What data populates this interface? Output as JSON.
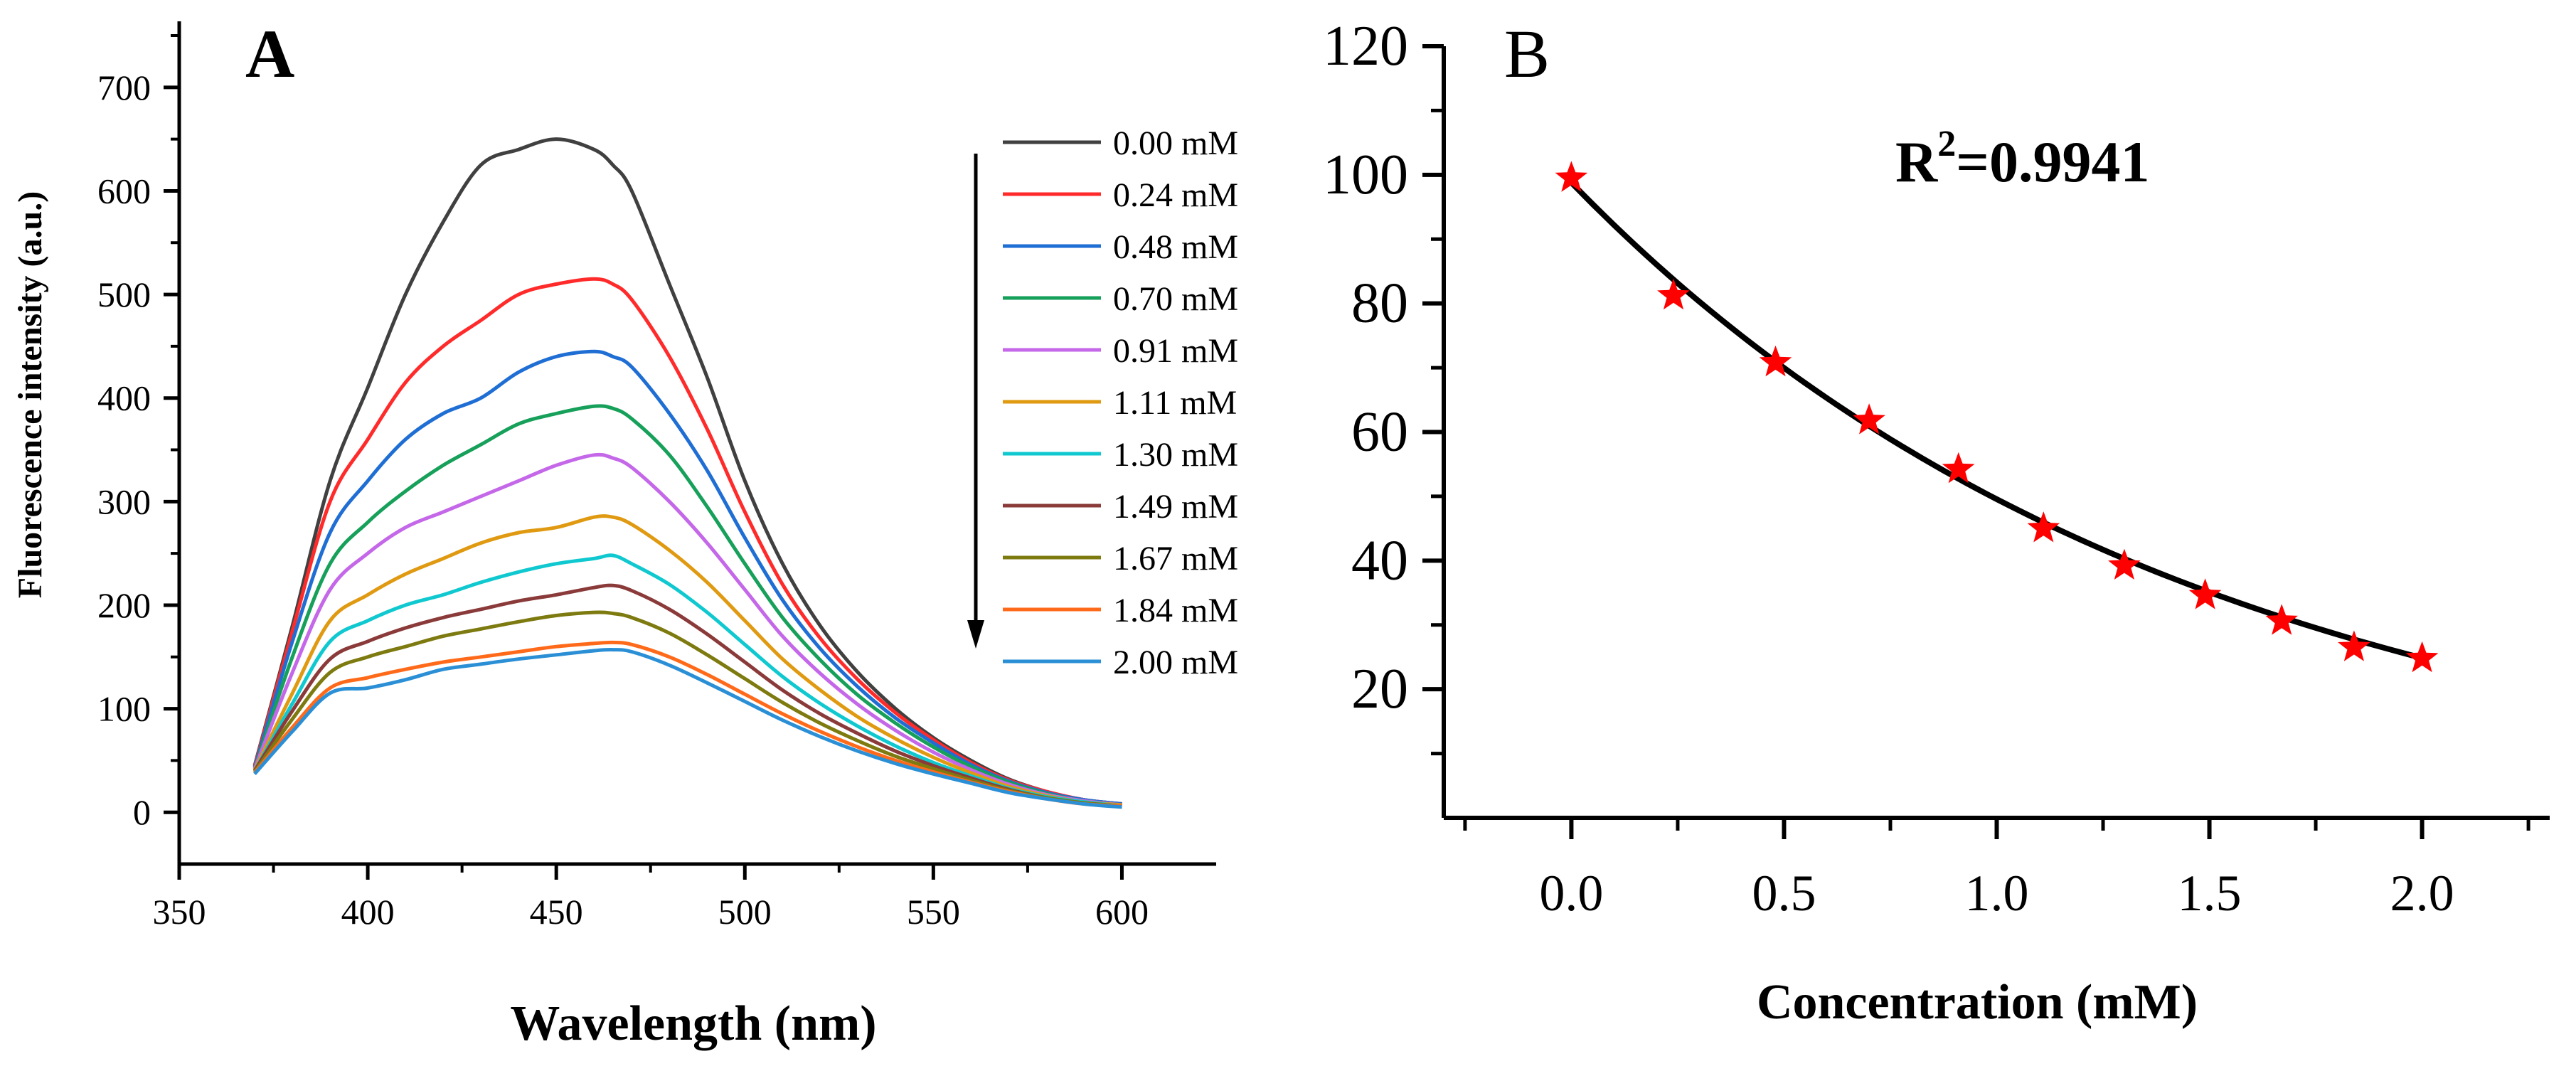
{
  "chart_data": [
    {
      "panel_label": "A",
      "type": "line",
      "title": "",
      "xlabel": "Wavelength (nm)",
      "ylabel": "Fluorescence intensity (a.u.)",
      "xlim": [
        350,
        625
      ],
      "ylim": [
        -50,
        750
      ],
      "xticks": [
        "350",
        "400",
        "450",
        "500",
        "550",
        "600"
      ],
      "yticks": [
        "0",
        "100",
        "200",
        "300",
        "400",
        "500",
        "600",
        "700"
      ],
      "x": [
        370,
        380,
        390,
        400,
        410,
        420,
        430,
        440,
        450,
        460,
        465,
        470,
        480,
        490,
        500,
        510,
        520,
        530,
        540,
        550,
        560,
        570,
        580,
        590,
        600
      ],
      "series": [
        {
          "name": "0.00 mM",
          "color": "#404040",
          "values": [
            45,
            180,
            320,
            410,
            500,
            570,
            625,
            640,
            650,
            640,
            625,
            600,
            510,
            420,
            320,
            240,
            180,
            135,
            100,
            72,
            50,
            32,
            20,
            12,
            8
          ]
        },
        {
          "name": "0.24 mM",
          "color": "#ff2b2b",
          "values": [
            44,
            175,
            300,
            360,
            415,
            450,
            475,
            500,
            510,
            515,
            510,
            495,
            440,
            370,
            290,
            220,
            168,
            128,
            96,
            70,
            48,
            31,
            20,
            12,
            8
          ]
        },
        {
          "name": "0.48 mM",
          "color": "#1f6ed4",
          "values": [
            43,
            165,
            270,
            320,
            360,
            385,
            400,
            425,
            440,
            445,
            440,
            430,
            385,
            330,
            265,
            205,
            158,
            121,
            91,
            67,
            46,
            30,
            19,
            12,
            8
          ]
        },
        {
          "name": "0.70 mM",
          "color": "#16a05a",
          "values": [
            42,
            150,
            240,
            280,
            310,
            335,
            355,
            375,
            385,
            392,
            390,
            380,
            345,
            295,
            240,
            188,
            147,
            113,
            86,
            63,
            44,
            29,
            18,
            11,
            7
          ]
        },
        {
          "name": "0.91 mM",
          "color": "#c467e8",
          "values": [
            42,
            135,
            215,
            250,
            275,
            290,
            305,
            320,
            335,
            345,
            342,
            333,
            300,
            260,
            215,
            170,
            134,
            104,
            79,
            58,
            41,
            27,
            17,
            11,
            7
          ]
        },
        {
          "name": "1.11 mM",
          "color": "#e09a12",
          "values": [
            41,
            115,
            185,
            210,
            230,
            245,
            260,
            270,
            275,
            285,
            285,
            278,
            253,
            222,
            185,
            148,
            118,
            92,
            71,
            53,
            38,
            25,
            16,
            10,
            7
          ]
        },
        {
          "name": "1.30 mM",
          "color": "#10c8cf",
          "values": [
            40,
            105,
            165,
            185,
            200,
            210,
            222,
            232,
            240,
            245,
            248,
            240,
            220,
            193,
            162,
            131,
            105,
            83,
            64,
            48,
            35,
            23,
            15,
            10,
            6
          ]
        },
        {
          "name": "1.49 mM",
          "color": "#8b3a3a",
          "values": [
            40,
            98,
            148,
            165,
            178,
            188,
            196,
            204,
            210,
            217,
            219,
            214,
            196,
            172,
            145,
            118,
            95,
            76,
            59,
            45,
            33,
            22,
            14,
            9,
            6
          ]
        },
        {
          "name": "1.67 mM",
          "color": "#7d7a10",
          "values": [
            39,
            90,
            135,
            150,
            160,
            170,
            177,
            184,
            190,
            193,
            192,
            188,
            173,
            152,
            129,
            106,
            86,
            69,
            54,
            42,
            31,
            21,
            14,
            9,
            6
          ]
        },
        {
          "name": "1.84 mM",
          "color": "#ff6a1a",
          "values": [
            38,
            82,
            120,
            130,
            138,
            145,
            150,
            155,
            160,
            163,
            164,
            162,
            150,
            133,
            114,
            95,
            78,
            63,
            50,
            39,
            29,
            20,
            13,
            8,
            6
          ]
        },
        {
          "name": "2.00 mM",
          "color": "#2b8fd6",
          "values": [
            37,
            78,
            115,
            120,
            128,
            138,
            143,
            148,
            152,
            156,
            157,
            155,
            142,
            125,
            107,
            89,
            73,
            59,
            47,
            37,
            28,
            19,
            13,
            8,
            5
          ]
        }
      ],
      "annotation": "downward arrow indicating decreasing intensity with increasing concentration"
    },
    {
      "panel_label": "B",
      "type": "scatter",
      "title": "",
      "xlabel": "Concentration (mM)",
      "ylabel": "",
      "xlim": [
        -0.3,
        2.3
      ],
      "ylim": [
        0,
        120
      ],
      "xticks": [
        "0.0",
        "0.5",
        "1.0",
        "1.5",
        "2.0"
      ],
      "yticks": [
        "20",
        "40",
        "60",
        "80",
        "100",
        "120"
      ],
      "annotation_prefix": "R",
      "annotation_sup": "2",
      "annotation_suffix": "=0.9941",
      "points": {
        "marker": "star",
        "color": "#ff0000",
        "x": [
          0.0,
          0.24,
          0.48,
          0.7,
          0.91,
          1.11,
          1.3,
          1.49,
          1.67,
          1.84,
          2.0
        ],
        "y": [
          99.5,
          81.2,
          70.8,
          61.8,
          54.2,
          45.0,
          39.2,
          34.6,
          30.6,
          26.5,
          24.8
        ]
      },
      "fit": {
        "type": "exponential",
        "a": 98.8,
        "b": -0.69,
        "color": "#000000",
        "x_range": [
          0.0,
          2.0
        ]
      }
    }
  ]
}
